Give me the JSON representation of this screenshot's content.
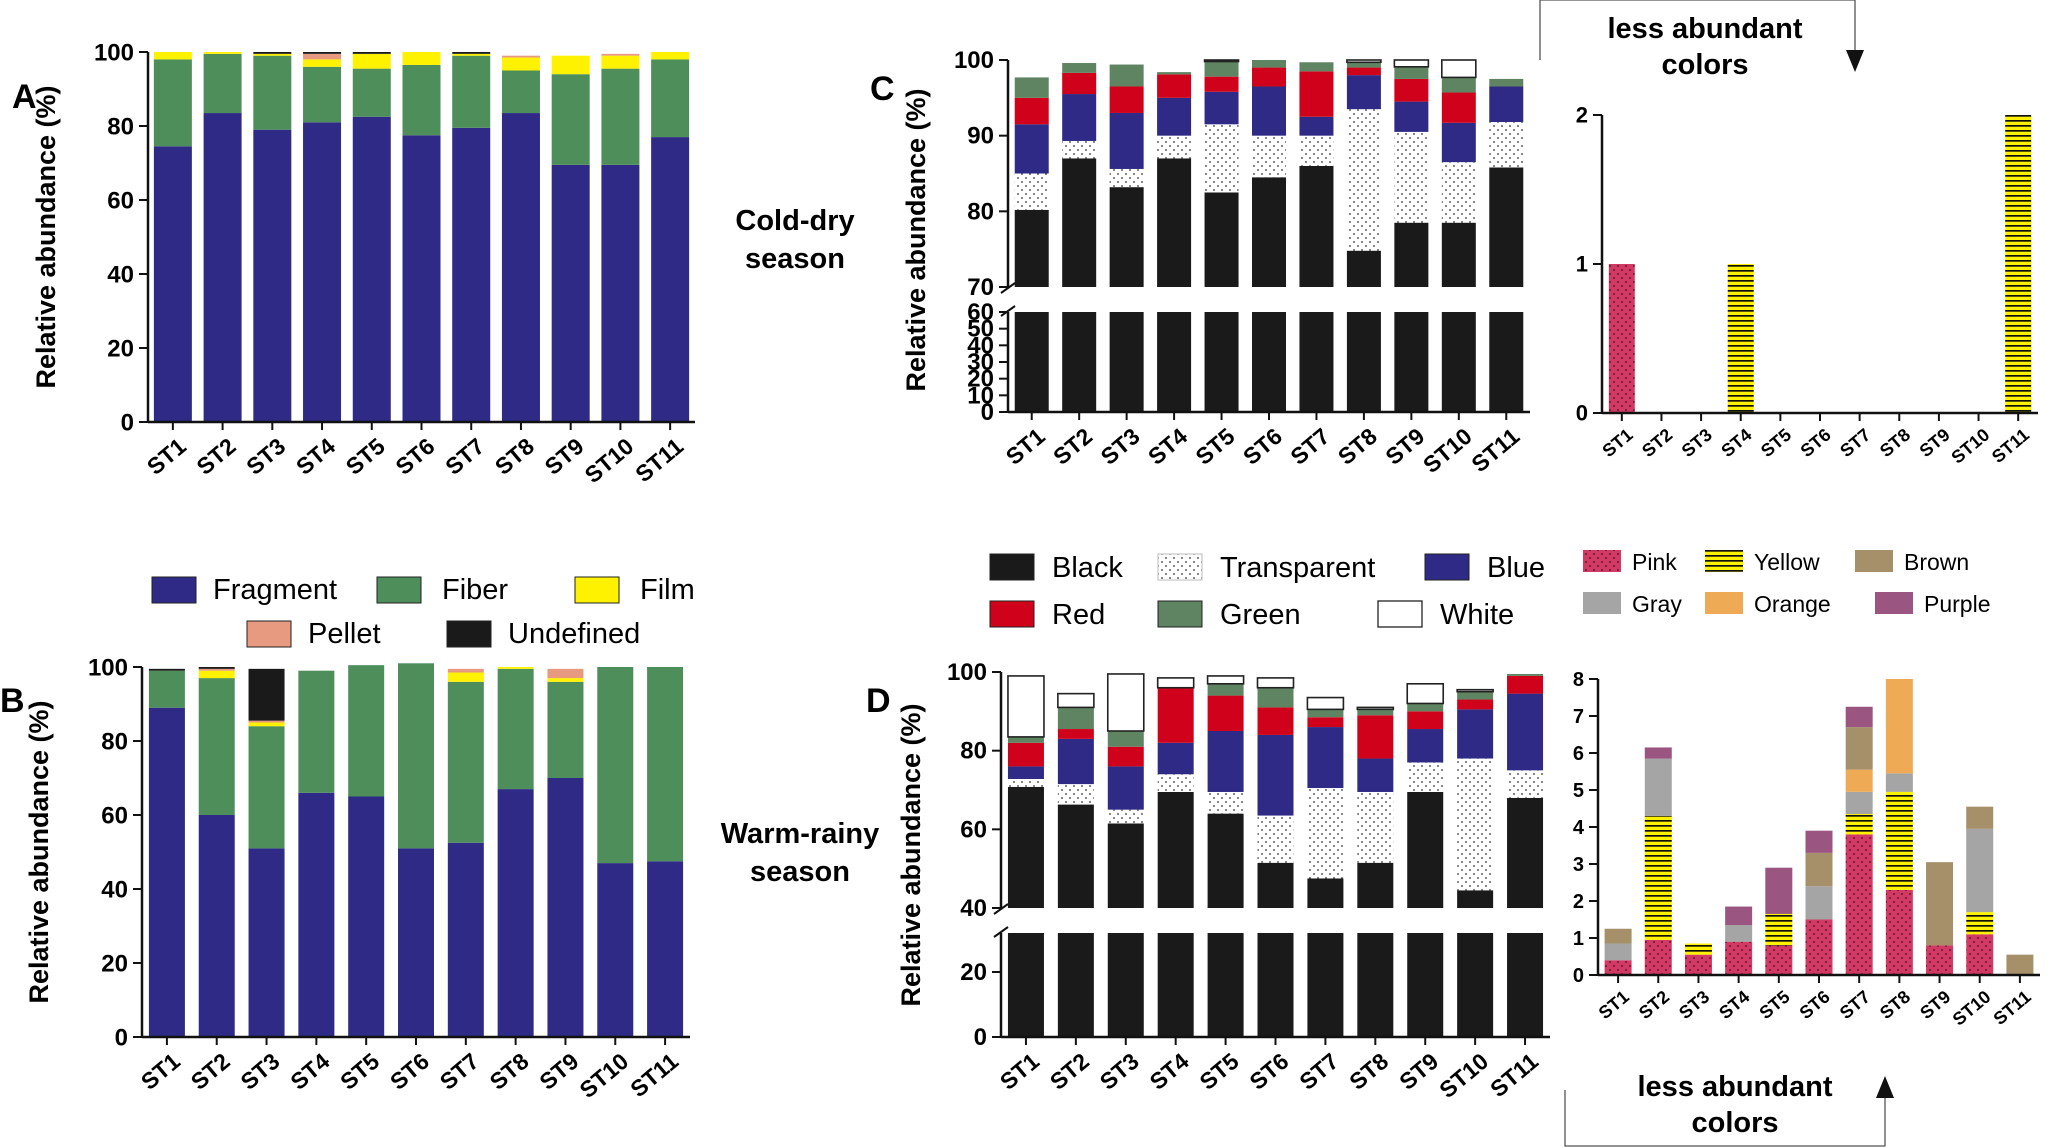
{
  "legend_types": {
    "items": [
      {
        "label": "Fragment",
        "color": "#2E2A86"
      },
      {
        "label": "Fiber",
        "color": "#4E8E5A"
      },
      {
        "label": "Film",
        "color": "#FFF200"
      },
      {
        "label": "Pellet",
        "color": "#E89A80"
      },
      {
        "label": "Undefined",
        "color": "#1A1A1A"
      }
    ]
  },
  "legend_colors": {
    "items": [
      {
        "label": "Black",
        "color": "#1A1A1A"
      },
      {
        "label": "Transparent",
        "color": "#FFFFFF",
        "pattern": "dots"
      },
      {
        "label": "Blue",
        "color": "#2E2A86"
      },
      {
        "label": "Red",
        "color": "#D0021B"
      },
      {
        "label": "Green",
        "color": "#5E8462"
      },
      {
        "label": "White",
        "color": "#FFFFFF"
      }
    ]
  },
  "legend_less": {
    "items": [
      {
        "label": "Pink",
        "color": "#D23A66",
        "pattern": "dots"
      },
      {
        "label": "Yellow",
        "color": "#FFF200",
        "pattern": "hlines"
      },
      {
        "label": "Brown",
        "color": "#A6906A"
      },
      {
        "label": "Gray",
        "color": "#A5A5A5"
      },
      {
        "label": "Orange",
        "color": "#EFAA55"
      },
      {
        "label": "Purple",
        "color": "#9A5681"
      }
    ]
  },
  "annotations": {
    "cold_dry_line1": "Cold-dry",
    "cold_dry_line2": "season",
    "warm_rainy_line1": "Warm-rainy",
    "warm_rainy_line2": "season",
    "less_abundant_line1": "less abundant",
    "less_abundant_line2": "colors"
  },
  "chart_data": [
    {
      "id": "A",
      "panel_label": "A",
      "type": "stacked_bar",
      "title": "",
      "xlabel": "",
      "ylabel": "Relative abundance (%)",
      "ylim": [
        0,
        100
      ],
      "yticks": [
        0,
        20,
        40,
        60,
        80,
        100
      ],
      "categories": [
        "ST1",
        "ST2",
        "ST3",
        "ST4",
        "ST5",
        "ST6",
        "ST7",
        "ST8",
        "ST9",
        "ST10",
        "ST11"
      ],
      "series": [
        {
          "name": "Fragment",
          "color": "#2E2A86",
          "values": [
            74.5,
            83.5,
            79,
            81,
            82.5,
            77.5,
            79.5,
            83.5,
            69.5,
            69.5,
            77
          ]
        },
        {
          "name": "Fiber",
          "color": "#4E8E5A",
          "values": [
            23.5,
            16,
            20,
            15,
            13,
            19,
            19.5,
            11.5,
            24.5,
            26,
            21
          ]
        },
        {
          "name": "Film",
          "color": "#FFF200",
          "values": [
            2,
            0.5,
            0.5,
            2,
            4,
            3.5,
            0.5,
            3.5,
            5,
            3.5,
            2
          ]
        },
        {
          "name": "Pellet",
          "color": "#E89A80",
          "values": [
            0,
            0,
            0,
            1.5,
            0,
            0,
            0,
            0.5,
            0,
            0.5,
            0
          ]
        },
        {
          "name": "Undefined",
          "color": "#1A1A1A",
          "values": [
            0,
            0,
            0.5,
            0.5,
            0.5,
            0,
            0.5,
            0,
            0,
            0,
            0
          ]
        }
      ]
    },
    {
      "id": "B",
      "panel_label": "B",
      "type": "stacked_bar",
      "title": "",
      "xlabel": "",
      "ylabel": "Relative abundance (%)",
      "ylim": [
        0,
        100
      ],
      "yticks": [
        0,
        20,
        40,
        60,
        80,
        100
      ],
      "categories": [
        "ST1",
        "ST2",
        "ST3",
        "ST4",
        "ST5",
        "ST6",
        "ST7",
        "ST8",
        "ST9",
        "ST10",
        "ST11"
      ],
      "series": [
        {
          "name": "Fragment",
          "color": "#2E2A86",
          "values": [
            89,
            60,
            51,
            66,
            65,
            51,
            52.5,
            67,
            70,
            47,
            47.5
          ]
        },
        {
          "name": "Fiber",
          "color": "#4E8E5A",
          "values": [
            10,
            37,
            33,
            33,
            35.5,
            50,
            43.5,
            32.5,
            26,
            53,
            52.5
          ]
        },
        {
          "name": "Film",
          "color": "#FFF200",
          "values": [
            0,
            2,
            1,
            0,
            0,
            0,
            2.5,
            0.5,
            1,
            0,
            0
          ]
        },
        {
          "name": "Pellet",
          "color": "#E89A80",
          "values": [
            0,
            0.5,
            0.5,
            0,
            0,
            0,
            1,
            0,
            2.5,
            0,
            0
          ]
        },
        {
          "name": "Undefined",
          "color": "#1A1A1A",
          "values": [
            0.5,
            0.5,
            14,
            0,
            0,
            0,
            0,
            0,
            0,
            0,
            0
          ]
        }
      ]
    },
    {
      "id": "C",
      "panel_label": "C",
      "type": "stacked_bar_broken_axis",
      "title": "",
      "xlabel": "",
      "ylabel": "Relative abundance (%)",
      "lower_axis": {
        "ylim": [
          0,
          60
        ],
        "yticks": [
          0,
          10,
          20,
          30,
          40,
          50,
          60
        ]
      },
      "upper_axis": {
        "ylim": [
          70,
          100
        ],
        "yticks": [
          70,
          80,
          90,
          100
        ]
      },
      "categories": [
        "ST1",
        "ST2",
        "ST3",
        "ST4",
        "ST5",
        "ST6",
        "ST7",
        "ST8",
        "ST9",
        "ST10",
        "ST11"
      ],
      "series": [
        {
          "name": "Black",
          "color": "#1A1A1A",
          "values": [
            80.2,
            87,
            83.2,
            87,
            82.5,
            84.5,
            86,
            74.8,
            78.5,
            78.5,
            85.8
          ]
        },
        {
          "name": "Transparent",
          "color": "#FFFFFF",
          "pattern": "dots",
          "values": [
            4.8,
            2.3,
            2.4,
            3,
            9,
            5.5,
            4,
            18.7,
            12,
            8,
            6
          ]
        },
        {
          "name": "Blue",
          "color": "#2E2A86",
          "values": [
            6.5,
            6.2,
            7.4,
            5,
            4.3,
            6.5,
            2.5,
            4.5,
            4,
            5.2,
            4.7
          ]
        },
        {
          "name": "Red",
          "color": "#D0021B",
          "values": [
            3.5,
            2.8,
            3.5,
            3.1,
            2,
            2.5,
            6,
            1,
            3,
            4,
            0
          ]
        },
        {
          "name": "Green",
          "color": "#5E8462",
          "values": [
            2.7,
            1.3,
            2.9,
            0.3,
            2,
            1,
            1.2,
            0.7,
            1.6,
            2,
            1
          ]
        },
        {
          "name": "White",
          "color": "#FFFFFF",
          "values": [
            0,
            0,
            0,
            0,
            2.2,
            0,
            0,
            0.3,
            2.4,
            2.3,
            0
          ]
        }
      ]
    },
    {
      "id": "C_less",
      "type": "stacked_bar",
      "title": "",
      "xlabel": "",
      "ylabel": "",
      "ylim": [
        0,
        2
      ],
      "yticks": [
        0,
        1,
        2
      ],
      "categories": [
        "ST1",
        "ST2",
        "ST3",
        "ST4",
        "ST5",
        "ST6",
        "ST7",
        "ST8",
        "ST9",
        "ST10",
        "ST11"
      ],
      "series": [
        {
          "name": "Pink",
          "color": "#D23A66",
          "pattern": "dots",
          "values": [
            1,
            0,
            0,
            0,
            0,
            0,
            0,
            0,
            0,
            0,
            0
          ]
        },
        {
          "name": "Yellow",
          "color": "#FFF200",
          "pattern": "hlines",
          "values": [
            0,
            0,
            0,
            1,
            0,
            0,
            0,
            0,
            0,
            0,
            2
          ]
        }
      ]
    },
    {
      "id": "D",
      "panel_label": "D",
      "type": "stacked_bar_broken_axis",
      "title": "",
      "xlabel": "",
      "ylabel": "Relative abundance (%)",
      "lower_axis": {
        "ylim": [
          0,
          32
        ],
        "yticks": [
          0,
          20
        ]
      },
      "upper_axis": {
        "ylim": [
          40,
          100
        ],
        "yticks": [
          40,
          60,
          80,
          100
        ]
      },
      "categories": [
        "ST1",
        "ST2",
        "ST3",
        "ST4",
        "ST5",
        "ST6",
        "ST7",
        "ST8",
        "ST9",
        "ST10",
        "ST11"
      ],
      "series": [
        {
          "name": "Black",
          "color": "#1A1A1A",
          "values": [
            70.8,
            66.3,
            61.5,
            69.5,
            64,
            51.5,
            47.5,
            51.5,
            69.5,
            44.5,
            68
          ]
        },
        {
          "name": "Transparent",
          "color": "#FFFFFF",
          "pattern": "dots",
          "values": [
            2,
            5.2,
            3.5,
            4.5,
            5.5,
            12,
            23,
            18,
            7.5,
            33.5,
            7
          ]
        },
        {
          "name": "Blue",
          "color": "#2E2A86",
          "values": [
            3.2,
            11.5,
            11,
            8,
            15.5,
            20.5,
            15.5,
            8.5,
            8.5,
            12.5,
            19.5
          ]
        },
        {
          "name": "Red",
          "color": "#D0021B",
          "values": [
            6,
            2.5,
            5,
            14,
            9,
            7,
            2.5,
            11,
            4.5,
            2.5,
            4.5
          ]
        },
        {
          "name": "Green",
          "color": "#5E8462",
          "values": [
            1.5,
            5.5,
            4,
            0,
            3,
            5,
            2,
            1.5,
            2,
            2,
            0.5
          ]
        },
        {
          "name": "White",
          "color": "#FFFFFF",
          "values": [
            15.5,
            3.5,
            14.5,
            2.5,
            2,
            2.5,
            3,
            0.5,
            5,
            0.5,
            0
          ]
        }
      ]
    },
    {
      "id": "D_less",
      "type": "stacked_bar",
      "title": "",
      "xlabel": "",
      "ylabel": "",
      "ylim": [
        0,
        8
      ],
      "yticks": [
        0,
        1,
        2,
        3,
        4,
        5,
        6,
        7,
        8
      ],
      "categories": [
        "ST1",
        "ST2",
        "ST3",
        "ST4",
        "ST5",
        "ST6",
        "ST7",
        "ST8",
        "ST9",
        "ST10",
        "ST11"
      ],
      "series": [
        {
          "name": "Pink",
          "color": "#D23A66",
          "pattern": "dots",
          "values": [
            0.4,
            0.95,
            0.55,
            0.9,
            0.8,
            1.5,
            3.8,
            2.3,
            0.8,
            1.1,
            0
          ]
        },
        {
          "name": "Yellow",
          "color": "#FFF200",
          "pattern": "hlines",
          "values": [
            0,
            3.35,
            0.3,
            0,
            0.85,
            0,
            0.55,
            2.65,
            0,
            0.6,
            0
          ]
        },
        {
          "name": "Gray",
          "color": "#A5A5A5",
          "values": [
            0.45,
            1.55,
            0,
            0.45,
            0,
            0.9,
            0.6,
            0.5,
            0,
            2.25,
            0
          ]
        },
        {
          "name": "Orange",
          "color": "#EFAA55",
          "values": [
            0,
            0,
            0,
            0,
            0,
            0,
            0.6,
            2.55,
            0,
            0,
            0
          ]
        },
        {
          "name": "Brown",
          "color": "#A6906A",
          "values": [
            0.4,
            0,
            0,
            0,
            0,
            0.9,
            1.15,
            0,
            2.25,
            0.6,
            0.55
          ]
        },
        {
          "name": "Purple",
          "color": "#9A5681",
          "values": [
            0,
            0.3,
            0,
            0.5,
            1.25,
            0.6,
            0.55,
            0,
            0,
            0,
            0
          ]
        }
      ]
    }
  ]
}
